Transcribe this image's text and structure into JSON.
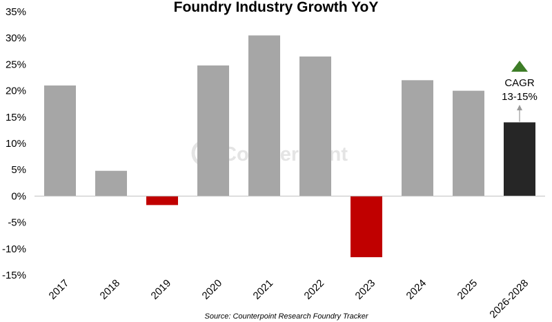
{
  "chart_data": {
    "type": "bar",
    "title": "Foundry Industry Growth YoY",
    "categories": [
      "2017",
      "2018",
      "2019",
      "2020",
      "2021",
      "2022",
      "2023",
      "2024",
      "2025",
      "2026-2028"
    ],
    "values": [
      21,
      4.8,
      -1.7,
      24.8,
      30.5,
      26.5,
      -11.6,
      22,
      20,
      14
    ],
    "y_tick_labels": [
      "35%",
      "30%",
      "25%",
      "20%",
      "15%",
      "10%",
      "5%",
      "0%",
      "-5%",
      "-10%",
      "-15%"
    ],
    "ylim": [
      -15,
      35
    ],
    "grid": false,
    "legend": "none",
    "xlabel": "",
    "ylabel": "",
    "annotation": {
      "line1": "CAGR",
      "line2": "13-15%",
      "arrow": "up",
      "target_category": "2026-2028"
    },
    "watermark": "Counterpoint",
    "source": "Source: Counterpoint Research Foundry Tracker"
  },
  "colors": {
    "positive_bar": "#a6a6a6",
    "negative_bar": "#c00000",
    "forecast_bar": "#262626",
    "triangle": "#3d7d27",
    "arrow": "#9a9a9a",
    "axis": "#bfbfbf"
  }
}
